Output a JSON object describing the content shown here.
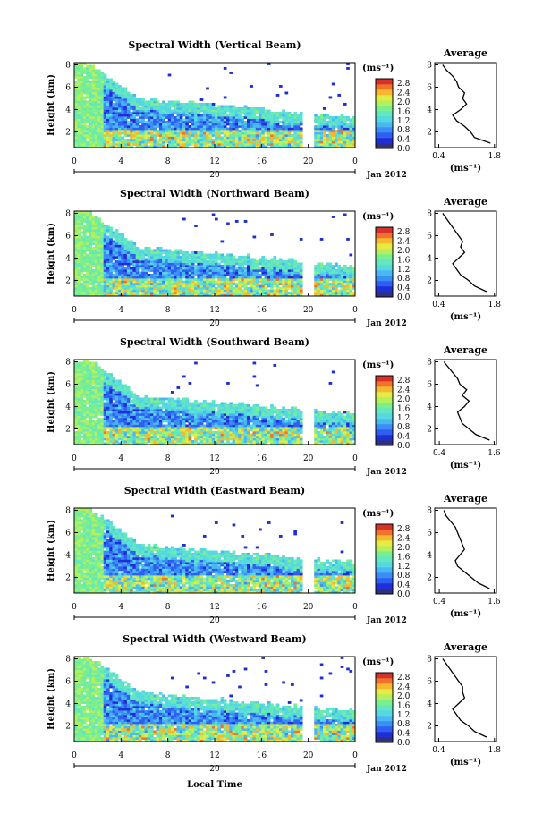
{
  "shared": {
    "height_label": "Height (km)",
    "unit_label": "(ms⁻¹)",
    "date_tick": "20",
    "date_label": "Jan 2012",
    "avg_title": "Average",
    "avg_unit": "(ms⁻¹)",
    "bottom_xlabel": "Local Time",
    "colormap": [
      "#303080",
      "#1f2fd6",
      "#2f5ef2",
      "#3a8ef5",
      "#4ab8f0",
      "#55d8e2",
      "#62e7c0",
      "#7bef8f",
      "#b4f05e",
      "#e6ea43",
      "#f6b830",
      "#f0722b",
      "#d8302a"
    ]
  },
  "chart_data": [
    {
      "type": "heatmap",
      "title": "Spectral Width (Vertical Beam)",
      "x_ticks": [
        "0",
        "4",
        "8",
        "12",
        "16",
        "20",
        "0"
      ],
      "xlim": [
        0,
        24
      ],
      "y_ticks": [
        "2",
        "4",
        "6",
        "8"
      ],
      "ylim": [
        0.6,
        8.2
      ],
      "colorbar_ticks": [
        "0.0",
        "0.4",
        "0.8",
        "1.2",
        "1.6",
        "2.0",
        "2.4",
        "2.8"
      ],
      "colorbar_range": [
        0.0,
        3.0
      ],
      "avg_x_ticks": [
        "0.4",
        "1.8"
      ],
      "avg_y_ticks": [
        "2",
        "4",
        "6",
        "8"
      ],
      "avg_profile": {
        "height_km": [
          1.0,
          1.5,
          2.0,
          2.5,
          3.0,
          3.5,
          4.0,
          4.5,
          5.0,
          5.5,
          6.0,
          6.5,
          7.0,
          7.5,
          8.0
        ],
        "width_ms": [
          1.7,
          1.3,
          1.2,
          1.05,
          0.85,
          0.75,
          0.95,
          1.1,
          1.0,
          1.05,
          0.9,
          0.85,
          0.75,
          0.6,
          0.5
        ]
      }
    },
    {
      "type": "heatmap",
      "title": "Spectral Width (Northward Beam)",
      "x_ticks": [
        "0",
        "4",
        "8",
        "12",
        "16",
        "20",
        "0"
      ],
      "xlim": [
        0,
        24
      ],
      "y_ticks": [
        "2",
        "4",
        "6",
        "8"
      ],
      "ylim": [
        0.6,
        8.2
      ],
      "colorbar_ticks": [
        "0.0",
        "0.4",
        "0.8",
        "1.2",
        "1.6",
        "2.0",
        "2.4",
        "2.8"
      ],
      "colorbar_range": [
        0.0,
        3.0
      ],
      "avg_x_ticks": [
        "0.4",
        "1.8"
      ],
      "avg_y_ticks": [
        "2",
        "4",
        "6",
        "8"
      ],
      "avg_profile": {
        "height_km": [
          1.0,
          1.5,
          2.0,
          2.5,
          3.0,
          3.5,
          4.0,
          4.5,
          5.0,
          5.5,
          6.0,
          6.5,
          7.0,
          7.5,
          8.0
        ],
        "width_ms": [
          1.6,
          1.3,
          1.15,
          0.95,
          0.85,
          0.75,
          0.9,
          1.05,
          0.95,
          1.0,
          0.9,
          0.8,
          0.7,
          0.6,
          0.5
        ]
      }
    },
    {
      "type": "heatmap",
      "title": "Spectral Width (Southward Beam)",
      "x_ticks": [
        "0",
        "4",
        "8",
        "12",
        "16",
        "20",
        "0"
      ],
      "xlim": [
        0,
        24
      ],
      "y_ticks": [
        "2",
        "4",
        "6",
        "8"
      ],
      "ylim": [
        0.6,
        8.2
      ],
      "colorbar_ticks": [
        "0.0",
        "0.4",
        "0.8",
        "1.2",
        "1.6",
        "2.0",
        "2.4",
        "2.8"
      ],
      "colorbar_range": [
        0.0,
        3.0
      ],
      "avg_x_ticks": [
        "0.4",
        "1.6"
      ],
      "avg_y_ticks": [
        "2",
        "4",
        "6",
        "8"
      ],
      "avg_profile": {
        "height_km": [
          1.0,
          1.5,
          2.0,
          2.5,
          3.0,
          3.5,
          4.0,
          4.5,
          5.0,
          5.5,
          6.0,
          6.5,
          7.0,
          7.5,
          8.0
        ],
        "width_ms": [
          1.5,
          1.2,
          1.05,
          0.9,
          0.85,
          0.8,
          0.95,
          1.05,
          0.9,
          1.0,
          0.85,
          0.8,
          0.7,
          0.6,
          0.5
        ]
      }
    },
    {
      "type": "heatmap",
      "title": "Spectral Width (Eastward Beam)",
      "x_ticks": [
        "0",
        "4",
        "8",
        "12",
        "16",
        "20",
        "0"
      ],
      "xlim": [
        0,
        24
      ],
      "y_ticks": [
        "2",
        "4",
        "6",
        "8"
      ],
      "ylim": [
        0.6,
        8.2
      ],
      "colorbar_ticks": [
        "0.0",
        "0.4",
        "0.8",
        "1.2",
        "1.6",
        "2.0",
        "2.4",
        "2.8"
      ],
      "colorbar_range": [
        0.0,
        3.0
      ],
      "avg_x_ticks": [
        "0.4",
        "1.6"
      ],
      "avg_y_ticks": [
        "2",
        "4",
        "6",
        "8"
      ],
      "avg_profile": {
        "height_km": [
          1.0,
          1.5,
          2.0,
          2.5,
          3.0,
          3.5,
          4.0,
          4.5,
          5.0,
          5.5,
          6.0,
          6.5,
          7.0,
          7.5,
          8.0
        ],
        "width_ms": [
          1.5,
          1.25,
          1.1,
          0.95,
          0.8,
          0.75,
          0.85,
          0.95,
          0.9,
          0.85,
          0.8,
          0.75,
          0.65,
          0.55,
          0.5
        ]
      }
    },
    {
      "type": "heatmap",
      "title": "Spectral Width (Westward Beam)",
      "x_ticks": [
        "0",
        "4",
        "8",
        "12",
        "16",
        "20",
        "0"
      ],
      "xlim": [
        0,
        24
      ],
      "y_ticks": [
        "2",
        "4",
        "6",
        "8"
      ],
      "ylim": [
        0.6,
        8.2
      ],
      "colorbar_ticks": [
        "0.0",
        "0.4",
        "0.8",
        "1.2",
        "1.6",
        "2.0",
        "2.4",
        "2.8"
      ],
      "colorbar_range": [
        0.0,
        3.0
      ],
      "avg_x_ticks": [
        "0.4",
        "1.8"
      ],
      "avg_y_ticks": [
        "2",
        "4",
        "6",
        "8"
      ],
      "avg_profile": {
        "height_km": [
          1.0,
          1.5,
          2.0,
          2.5,
          3.0,
          3.5,
          4.0,
          4.5,
          5.0,
          5.5,
          6.0,
          6.5,
          7.0,
          7.5,
          8.0
        ],
        "width_ms": [
          1.6,
          1.3,
          1.15,
          0.95,
          0.85,
          0.75,
          0.9,
          1.05,
          1.0,
          1.0,
          0.9,
          0.8,
          0.7,
          0.6,
          0.5
        ]
      }
    }
  ]
}
